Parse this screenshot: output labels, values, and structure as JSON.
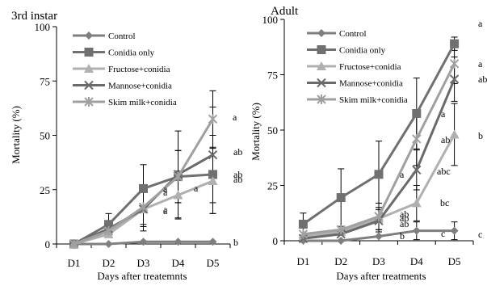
{
  "series_colors": {
    "Control": "#7f7f7f",
    "Conidia only": "#707070",
    "Fructose+conidia": "#b0b0b0",
    "Mannose+conidia": "#6a6a6a",
    "Skim milk+conidia": "#a0a0a0"
  },
  "series_markers": {
    "Control": "diamond",
    "Conidia only": "square",
    "Fructose+conidia": "triangle",
    "Mannose+conidia": "x",
    "Skim milk+conidia": "asterisk"
  },
  "chart_data": [
    {
      "type": "line",
      "title": "3rd instar",
      "xlabel": "Days after treatemnts",
      "ylabel": "Mortality (%)",
      "categories": [
        "D1",
        "D2",
        "D3",
        "D4",
        "D5"
      ],
      "ylim": [
        0,
        100
      ],
      "yticks": [
        0,
        25,
        50,
        75,
        100
      ],
      "grid": false,
      "legend_position": "top-left",
      "series": [
        {
          "name": "Control",
          "values": [
            0,
            0,
            1,
            1,
            1
          ],
          "errors": [
            0,
            0,
            0,
            0,
            0
          ]
        },
        {
          "name": "Conidia only",
          "values": [
            0,
            9,
            25.5,
            31,
            32
          ],
          "errors": [
            0,
            5,
            11,
            12,
            18
          ]
        },
        {
          "name": "Fructose+conidia",
          "values": [
            0,
            4.5,
            16,
            22.5,
            29
          ],
          "errors": [
            0,
            0,
            8,
            11,
            15
          ]
        },
        {
          "name": "Mannose+conidia",
          "values": [
            0,
            7,
            16,
            32,
            41
          ],
          "errors": [
            0,
            0,
            10,
            20,
            22
          ]
        },
        {
          "name": "Skim milk+conidia",
          "values": [
            0,
            6,
            17,
            31,
            57.5
          ],
          "errors": [
            0,
            0,
            8,
            12,
            13
          ]
        }
      ],
      "letters": [
        {
          "day": "D3",
          "text": "a"
        },
        {
          "day": "D3",
          "text": "a"
        },
        {
          "day": "D3",
          "text": "a"
        },
        {
          "day": "D3",
          "text": "a"
        },
        {
          "day": "D4",
          "text": "a"
        },
        {
          "day": "D5",
          "text": "a"
        },
        {
          "day": "D5",
          "text": "ab"
        },
        {
          "day": "D5",
          "text": "ab"
        },
        {
          "day": "D5",
          "text": "ab"
        },
        {
          "day": "D5",
          "text": "b"
        }
      ]
    },
    {
      "type": "line",
      "title": "Adult",
      "xlabel": "Days after treatments",
      "ylabel": "Mortality (%)",
      "categories": [
        "D1",
        "D2",
        "D3",
        "D4",
        "D5"
      ],
      "ylim": [
        0,
        100
      ],
      "yticks": [
        0,
        25,
        50,
        75,
        100
      ],
      "grid": false,
      "legend_position": "top-left",
      "series": [
        {
          "name": "Control",
          "values": [
            0,
            0,
            2,
            4.5,
            4.5
          ],
          "errors": [
            0,
            0,
            0,
            4,
            4
          ]
        },
        {
          "name": "Conidia only",
          "values": [
            7.5,
            19.5,
            30,
            57.5,
            89
          ],
          "errors": [
            5,
            13,
            15,
            16,
            3
          ]
        },
        {
          "name": "Fructose+conidia",
          "values": [
            2,
            4,
            10,
            17,
            48
          ],
          "errors": [
            0,
            0,
            5,
            8,
            14
          ]
        },
        {
          "name": "Mannose+conidia",
          "values": [
            1,
            3,
            9,
            32,
            73
          ],
          "errors": [
            0,
            0,
            5,
            9,
            10
          ]
        },
        {
          "name": "Skim milk+conidia",
          "values": [
            3,
            5,
            11,
            46,
            80
          ],
          "errors": [
            0,
            0,
            6,
            12,
            9
          ]
        }
      ],
      "letters": [
        {
          "day": "D3",
          "text": "a"
        },
        {
          "day": "D3",
          "text": "ab"
        },
        {
          "day": "D3",
          "text": "ab"
        },
        {
          "day": "D3",
          "text": "ab"
        },
        {
          "day": "D3",
          "text": "b"
        },
        {
          "day": "D4",
          "text": "a"
        },
        {
          "day": "D4",
          "text": "ab"
        },
        {
          "day": "D4",
          "text": "abc"
        },
        {
          "day": "D4",
          "text": "bc"
        },
        {
          "day": "D4",
          "text": "c"
        },
        {
          "day": "D5",
          "text": "a"
        },
        {
          "day": "D5",
          "text": "a"
        },
        {
          "day": "D5",
          "text": "ab"
        },
        {
          "day": "D5",
          "text": "b"
        },
        {
          "day": "D5",
          "text": "c"
        }
      ]
    }
  ]
}
